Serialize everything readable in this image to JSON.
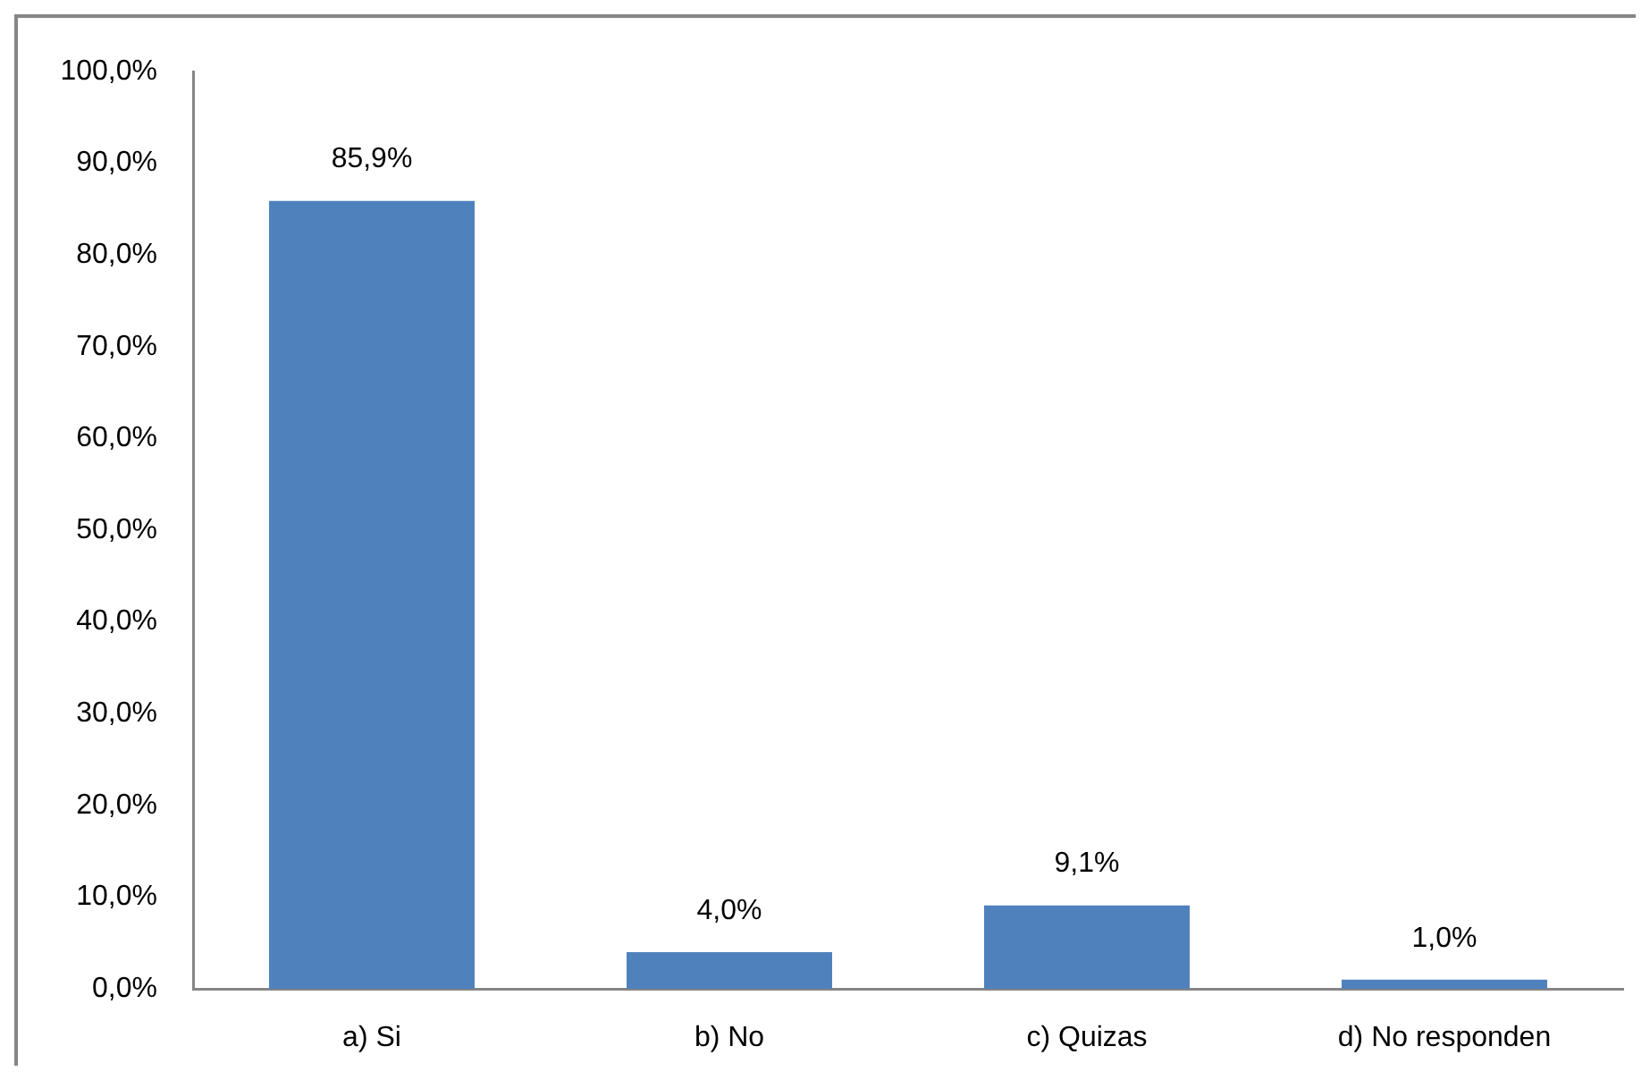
{
  "chart_data": {
    "type": "bar",
    "categories": [
      "a) Si",
      "b) No",
      "c) Quizas",
      "d) No responden"
    ],
    "values": [
      85.9,
      4.0,
      9.1,
      1.0
    ],
    "color": "#4f81bd",
    "ylim": [
      0,
      100
    ],
    "yticks": [
      {
        "value": 0,
        "label": "0,0%"
      },
      {
        "value": 10,
        "label": "10,0%"
      },
      {
        "value": 20,
        "label": "20,0%"
      },
      {
        "value": 30,
        "label": "30,0%"
      },
      {
        "value": 40,
        "label": "40,0%"
      },
      {
        "value": 50,
        "label": "50,0%"
      },
      {
        "value": 60,
        "label": "60,0%"
      },
      {
        "value": 70,
        "label": "70,0%"
      },
      {
        "value": 80,
        "label": "80,0%"
      },
      {
        "value": 90,
        "label": "90,0%"
      },
      {
        "value": 100,
        "label": "100,0%"
      }
    ],
    "value_labels": [
      "85,9%",
      "4,0%",
      "9,1%",
      "1,0%"
    ]
  }
}
